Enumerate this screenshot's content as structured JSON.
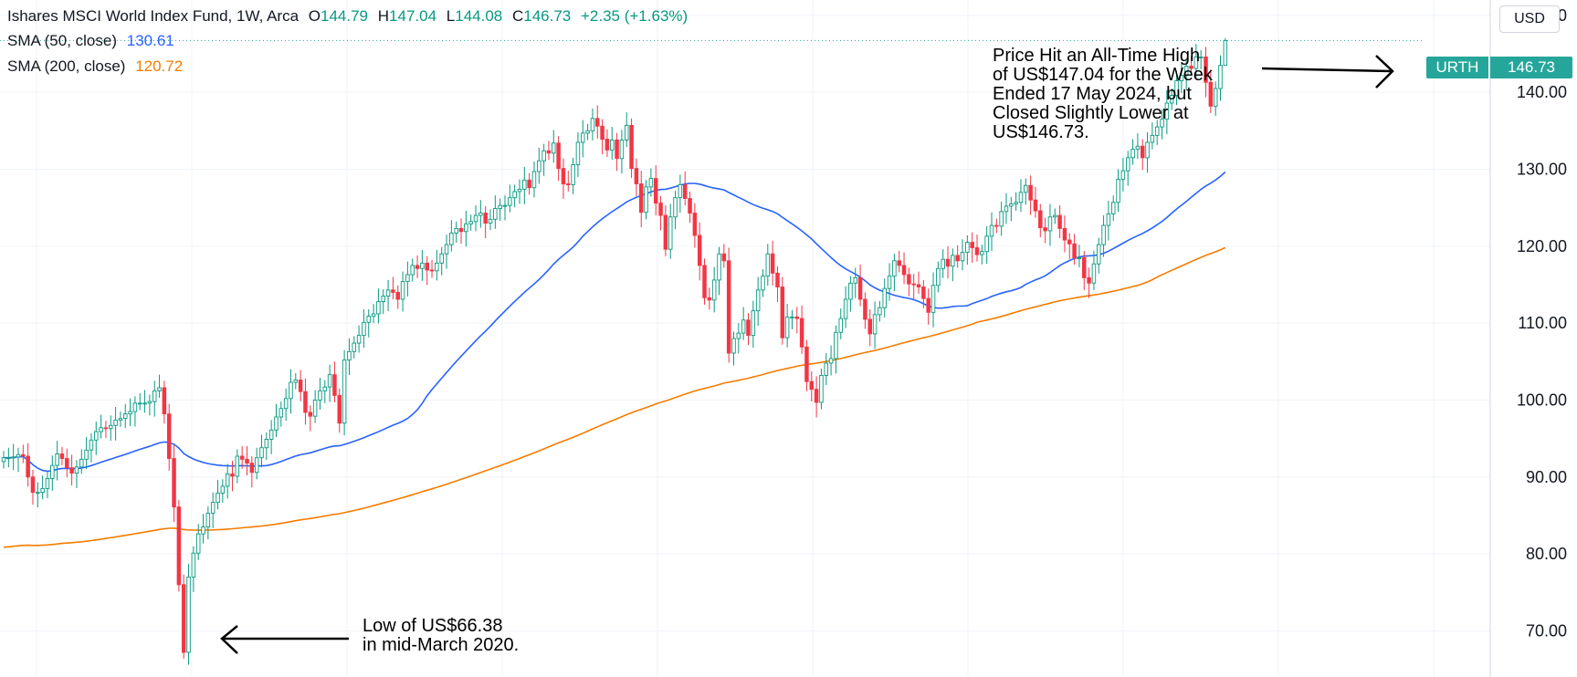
{
  "header": {
    "symbol_title": "Ishares MSCI World Index Fund, 1W, Arca",
    "open_label": "O",
    "open": "144.79",
    "high_label": "H",
    "high": "147.04",
    "low_label": "L",
    "low": "144.08",
    "close_label": "C",
    "close": "146.73",
    "change": "+2.35 (+1.63%)",
    "sma50_label": "SMA (50, close)",
    "sma50_value": "130.61",
    "sma200_label": "SMA (200, close)",
    "sma200_value": "120.72"
  },
  "price_scale": {
    "currency": "USD"
  },
  "last_price_badge": {
    "symbol": "URTH",
    "price": "146.73"
  },
  "annotations": {
    "high_note": "Price Hit an All-Time High\nof US$147.04 for the Week\nEnded 17 May 2024, but\nClosed Slightly Lower at\nUS$146.73.",
    "low_note": "Low of US$66.38\nin mid-March 2020."
  },
  "colors": {
    "up": "#089981",
    "down": "#f23645",
    "sma50": "#2962ff",
    "sma200": "#f57c00",
    "grid": "#f0f3fa",
    "badge": "#26a69a"
  },
  "chart_data": {
    "type": "candlestick",
    "ylim": [
      64,
      152
    ],
    "y_ticks": [
      "70.00",
      "80.00",
      "90.00",
      "100.00",
      "110.00",
      "120.00",
      "130.00",
      "140.00",
      "150.00"
    ],
    "grid": true,
    "last_close": 146.73,
    "close": [
      92.5,
      92.5,
      92.6,
      92.9,
      92.7,
      90.0,
      88.0,
      88.0,
      88.5,
      89.8,
      91.5,
      93.0,
      92.4,
      91.2,
      90.5,
      91.3,
      92.3,
      93.5,
      94.8,
      95.9,
      96.4,
      96.3,
      96.7,
      97.4,
      97.6,
      98.2,
      98.5,
      99.6,
      99.6,
      99.6,
      99.8,
      101.2,
      101.6,
      98.2,
      92.4,
      86.1,
      76.0,
      67.2,
      77.0,
      80.1,
      82.6,
      83.5,
      85.3,
      86.7,
      87.9,
      88.8,
      90.4,
      90.1,
      92.7,
      92.3,
      91.8,
      90.6,
      92.5,
      93.8,
      94.9,
      96.1,
      97.8,
      98.9,
      100.2,
      102.3,
      102.6,
      101.1,
      98.4,
      97.9,
      100.0,
      101.2,
      101.7,
      103.3,
      100.6,
      97.0,
      105.2,
      106.3,
      107.4,
      108.4,
      110.1,
      110.9,
      111.2,
      112.8,
      113.5,
      114.3,
      114.0,
      113.1,
      115.4,
      116.3,
      117.5,
      117.1,
      117.8,
      116.9,
      116.8,
      117.8,
      119.0,
      120.2,
      121.7,
      122.3,
      121.9,
      122.9,
      123.2,
      124.0,
      124.3,
      123.0,
      123.5,
      124.9,
      125.3,
      125.3,
      126.3,
      127.1,
      127.4,
      128.6,
      127.6,
      129.7,
      131.1,
      132.4,
      132.1,
      133.4,
      130.1,
      128.1,
      128.0,
      130.6,
      133.5,
      134.7,
      135.0,
      136.6,
      135.6,
      133.9,
      132.5,
      133.8,
      131.4,
      133.8,
      135.7,
      130.1,
      128.1,
      124.4,
      127.7,
      128.8,
      125.6,
      124.0,
      119.6,
      123.8,
      126.3,
      128.0,
      126.2,
      124.3,
      121.4,
      117.5,
      113.3,
      113.0,
      115.6,
      119.0,
      118.1,
      106.1,
      108.0,
      108.7,
      110.4,
      108.4,
      111.6,
      114.3,
      116.1,
      119.0,
      116.5,
      114.7,
      108.1,
      110.8,
      110.8,
      110.6,
      106.9,
      102.4,
      101.4,
      99.7,
      103.2,
      104.8,
      105.4,
      108.8,
      110.6,
      113.1,
      115.2,
      115.9,
      113.1,
      110.5,
      108.6,
      111.1,
      112.0,
      114.5,
      116.1,
      118.1,
      117.5,
      116.3,
      115.1,
      115.0,
      114.7,
      113.2,
      111.4,
      114.9,
      117.1,
      118.3,
      117.4,
      118.8,
      118.1,
      119.2,
      120.5,
      119.8,
      118.9,
      119.3,
      121.3,
      122.7,
      122.6,
      124.5,
      125.2,
      125.5,
      125.7,
      127.0,
      127.9,
      126.0,
      124.6,
      122.4,
      122.0,
      123.8,
      124.0,
      122.3,
      120.8,
      120.3,
      118.5,
      118.5,
      115.9,
      115.2,
      117.7,
      120.2,
      122.7,
      124.2,
      125.7,
      128.7,
      129.8,
      131.5,
      132.6,
      133.0,
      131.5,
      133.5,
      134.4,
      135.5,
      136.5,
      138.6,
      139.6,
      141.5,
      142.2,
      143.4,
      143.1,
      144.6,
      144.6,
      141.3,
      138.2,
      140.5,
      143.5,
      146.73
    ],
    "low_marker": {
      "value": 66.38,
      "label": "mid-March 2020"
    },
    "high_marker": {
      "value": 147.04,
      "label": "week ended 17 May 2024"
    }
  }
}
